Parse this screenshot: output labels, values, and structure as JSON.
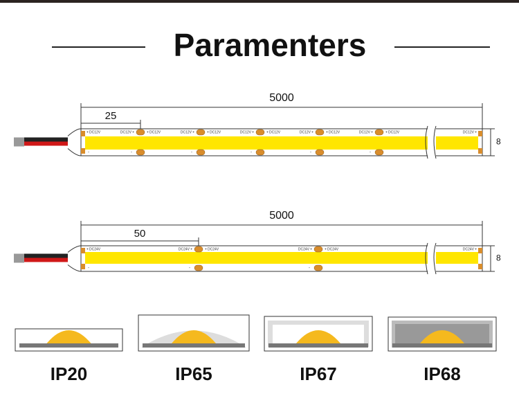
{
  "header": {
    "title": "Paramenters"
  },
  "strips": [
    {
      "length": "5000",
      "pitch": "25",
      "width": "8",
      "voltage": "DC12V",
      "plus": "+",
      "minus": "-"
    },
    {
      "length": "5000",
      "pitch": "50",
      "width": "8",
      "voltage": "DC24V",
      "plus": "+",
      "minus": "-"
    }
  ],
  "ratings": [
    {
      "label": "IP20"
    },
    {
      "label": "IP65"
    },
    {
      "label": "IP67"
    },
    {
      "label": "IP68"
    }
  ]
}
